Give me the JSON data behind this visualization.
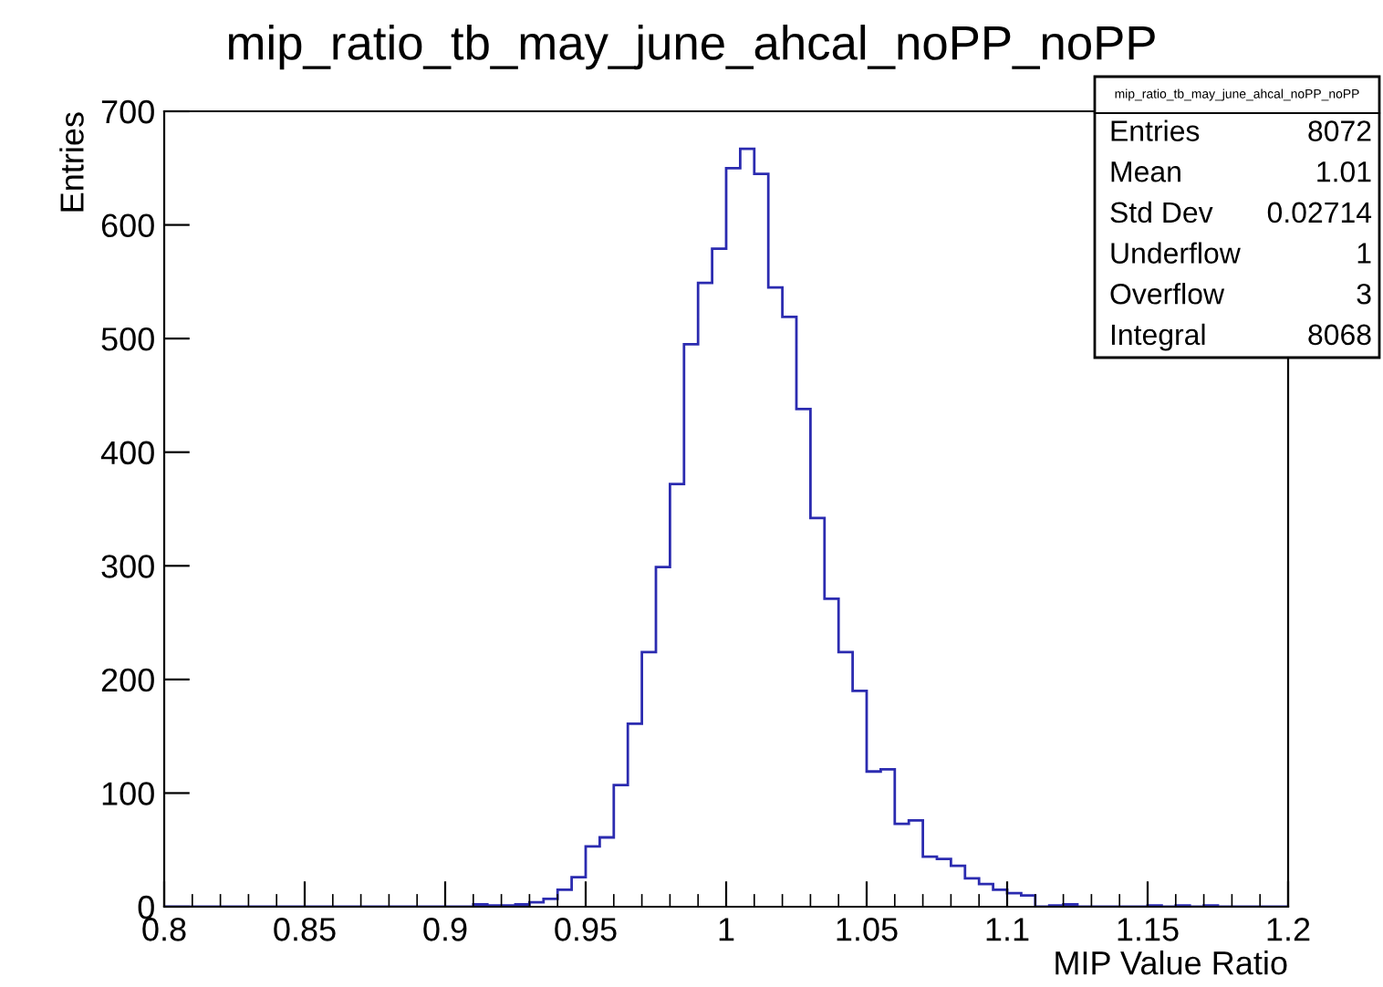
{
  "chart_data": {
    "type": "histogram",
    "title": "mip_ratio_tb_may_june_ahcal_noPP_noPP",
    "xlabel": "MIP Value Ratio",
    "ylabel": "Entries",
    "bins": [
      0.8,
      0.805,
      0.81,
      0.815,
      0.82,
      0.825,
      0.83,
      0.835,
      0.84,
      0.845,
      0.85,
      0.855,
      0.86,
      0.865,
      0.87,
      0.875,
      0.88,
      0.885,
      0.89,
      0.895,
      0.9,
      0.905,
      0.91,
      0.915,
      0.92,
      0.925,
      0.93,
      0.935,
      0.94,
      0.945,
      0.95,
      0.955,
      0.96,
      0.965,
      0.97,
      0.975,
      0.98,
      0.985,
      0.99,
      0.995,
      1.0,
      1.005,
      1.01,
      1.015,
      1.02,
      1.025,
      1.03,
      1.035,
      1.04,
      1.045,
      1.05,
      1.055,
      1.06,
      1.065,
      1.07,
      1.075,
      1.08,
      1.085,
      1.09,
      1.095,
      1.1,
      1.105,
      1.11,
      1.115,
      1.12,
      1.125,
      1.13,
      1.135,
      1.14,
      1.145,
      1.15,
      1.155,
      1.16,
      1.165,
      1.17,
      1.175,
      1.18,
      1.185,
      1.19,
      1.195,
      1.2
    ],
    "values": [
      0,
      0,
      0,
      0,
      0,
      0,
      0,
      0,
      0,
      0,
      0,
      0,
      0,
      0,
      0,
      0,
      0,
      0,
      0,
      0,
      0,
      0,
      2,
      1,
      1,
      2,
      4,
      7,
      15,
      26,
      53,
      61,
      107,
      161,
      224,
      299,
      372,
      495,
      549,
      579,
      650,
      667,
      645,
      545,
      519,
      438,
      342,
      271,
      224,
      190,
      119,
      121,
      73,
      76,
      44,
      42,
      36,
      25,
      20,
      15,
      12,
      10,
      0,
      1,
      2,
      0,
      0,
      0,
      0,
      0,
      1,
      0,
      1,
      0,
      1,
      0,
      0,
      0,
      0,
      0
    ],
    "color": "#2b2bb0",
    "xlim": [
      0.8,
      1.2
    ],
    "xticks": [
      0.8,
      {
        "value": 0.81,
        "label": null
      },
      {
        "value": 0.82,
        "label": null
      },
      {
        "value": 0.83,
        "label": null
      },
      {
        "value": 0.84,
        "label": null
      },
      0.85,
      {
        "value": 0.86,
        "label": null
      },
      {
        "value": 0.87,
        "label": null
      },
      {
        "value": 0.88,
        "label": null
      },
      {
        "value": 0.89,
        "label": null
      },
      0.9,
      {
        "value": 0.91,
        "label": null
      },
      {
        "value": 0.92,
        "label": null
      },
      {
        "value": 0.93,
        "label": null
      },
      {
        "value": 0.94,
        "label": null
      },
      0.95,
      {
        "value": 0.96,
        "label": null
      },
      {
        "value": 0.97,
        "label": null
      },
      {
        "value": 0.98,
        "label": null
      },
      {
        "value": 0.99,
        "label": null
      },
      {
        "value": 1.0,
        "label": "1"
      },
      {
        "value": 1.01,
        "label": null
      },
      {
        "value": 1.02,
        "label": null
      },
      {
        "value": 1.03,
        "label": null
      },
      {
        "value": 1.04,
        "label": null
      },
      1.05,
      {
        "value": 1.06,
        "label": null
      },
      {
        "value": 1.07,
        "label": null
      },
      {
        "value": 1.08,
        "label": null
      },
      {
        "value": 1.09,
        "label": null
      },
      1.1,
      {
        "value": 1.11,
        "label": null
      },
      {
        "value": 1.12,
        "label": null
      },
      {
        "value": 1.13,
        "label": null
      },
      {
        "value": 1.14,
        "label": null
      },
      1.15,
      {
        "value": 1.16,
        "label": null
      },
      {
        "value": 1.17,
        "label": null
      },
      {
        "value": 1.18,
        "label": null
      },
      {
        "value": 1.19,
        "label": null
      },
      1.2
    ],
    "ylim": [
      0,
      700
    ],
    "yticks": [
      0,
      100,
      200,
      300,
      400,
      500,
      600,
      700
    ],
    "annotations": [
      "mip_ratio_tb_may_june_ahcal_noPP_noPP",
      "Entries",
      "8072",
      "Mean",
      "1.01",
      "Std Dev",
      "0.02714",
      "Underflow",
      "1",
      "Overflow",
      "3",
      "Integral",
      "8068"
    ]
  }
}
